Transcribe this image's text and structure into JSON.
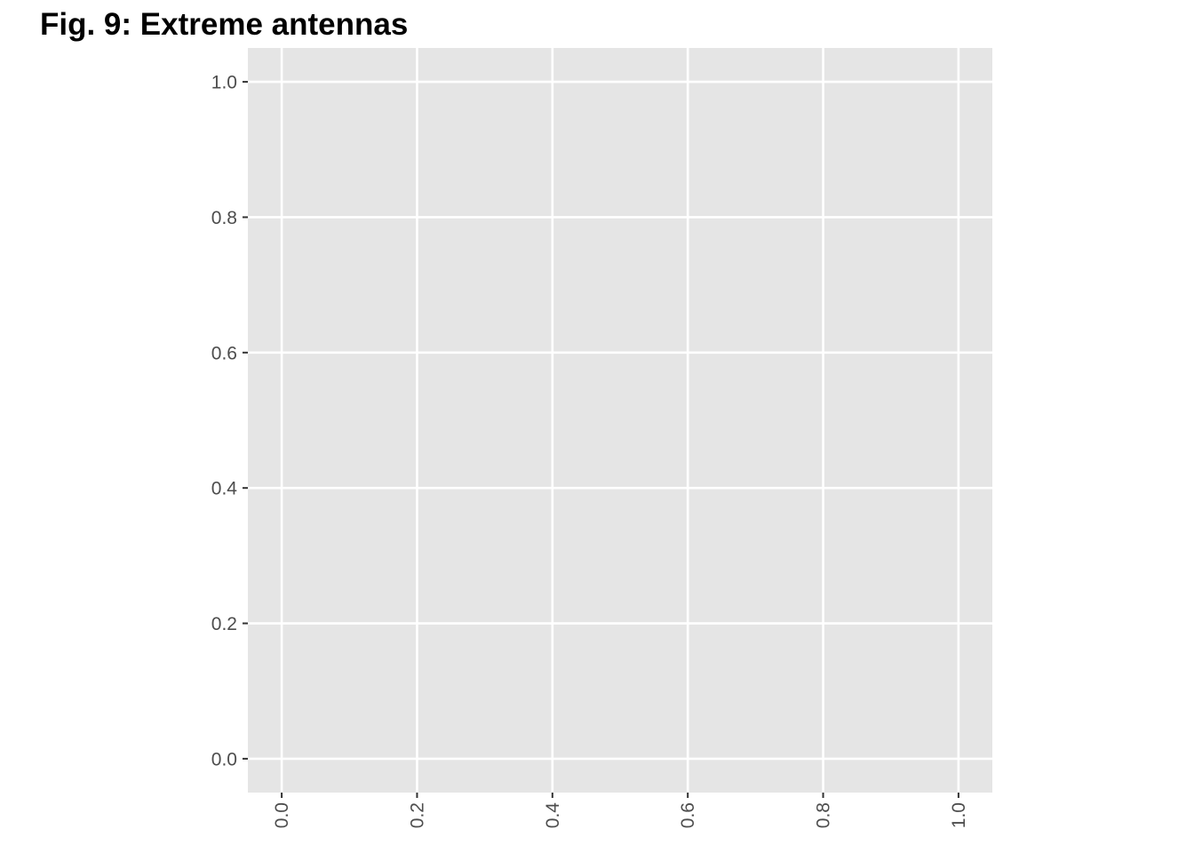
{
  "chart_data": {
    "type": "scatter",
    "title": "Fig. 9: Extreme antennas",
    "xlabel": "",
    "ylabel": "",
    "xlim": [
      -0.05,
      1.05
    ],
    "ylim": [
      -0.05,
      1.05
    ],
    "x_ticks": [
      "0.0",
      "0.2",
      "0.4",
      "0.6",
      "0.8",
      "1.0"
    ],
    "y_ticks": [
      "0.0",
      "0.2",
      "0.4",
      "0.6",
      "0.8",
      "1.0"
    ],
    "x_tick_rotation": "vertical",
    "series": [],
    "grid": true,
    "legend": "none"
  },
  "colors": {
    "panel_background": "#e5e5e5",
    "grid_line": "#ffffff",
    "axis_text": "#4d4d4d",
    "tick_mark": "#333333"
  }
}
